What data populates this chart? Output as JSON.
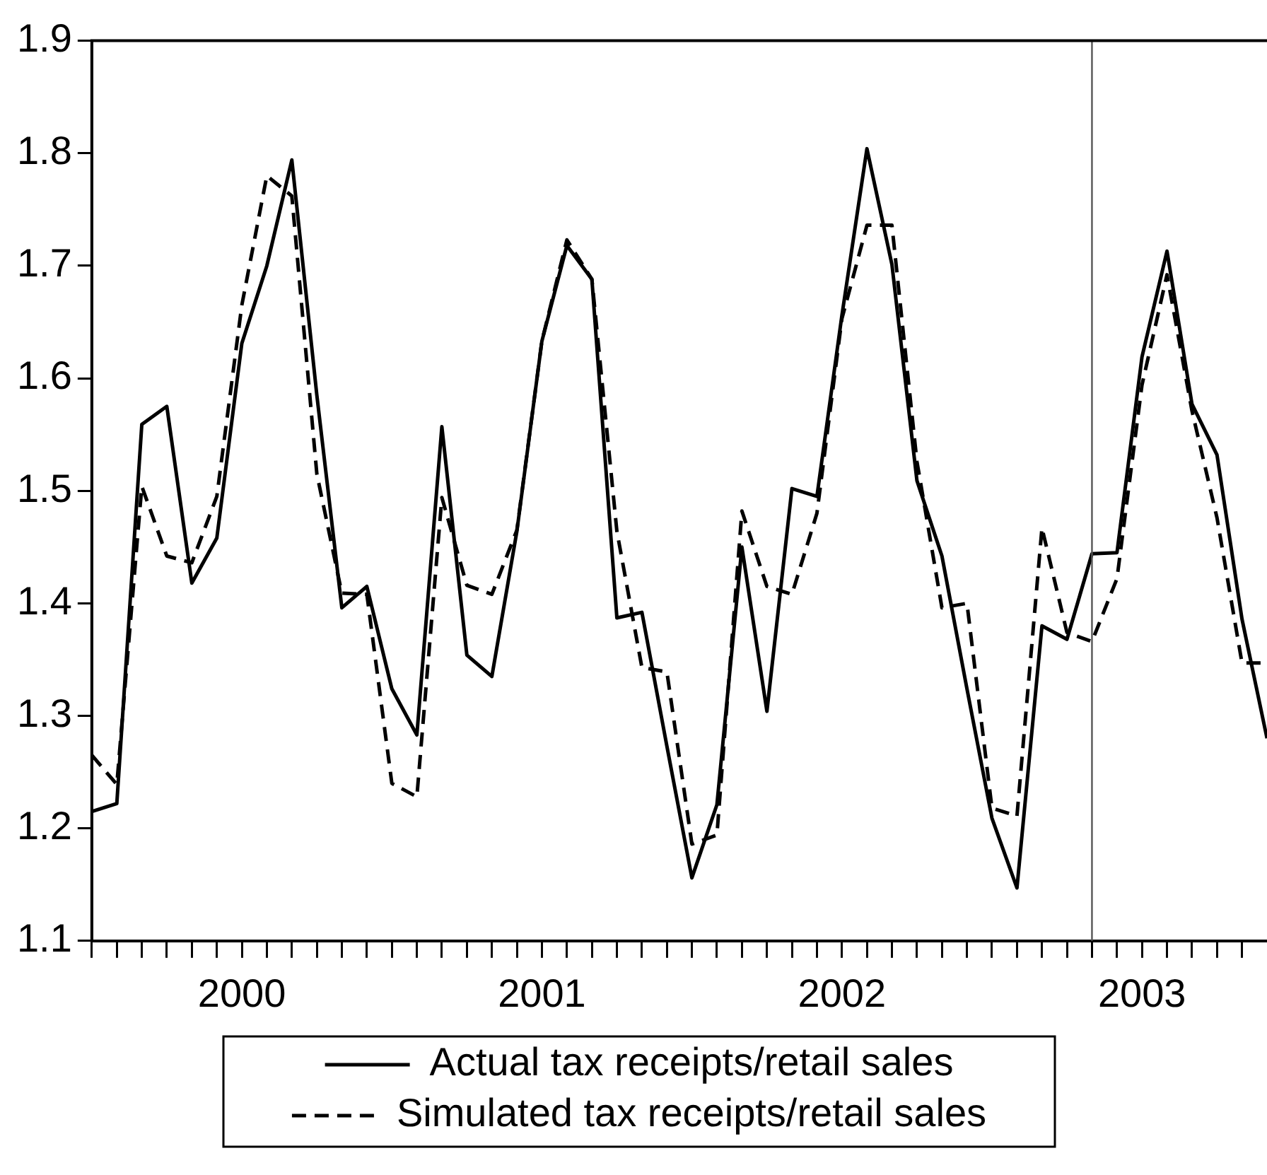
{
  "chart_data": {
    "type": "line",
    "x": [
      "2000-01",
      "2000-02",
      "2000-03",
      "2000-04",
      "2000-05",
      "2000-06",
      "2000-07",
      "2000-08",
      "2000-09",
      "2000-10",
      "2000-11",
      "2000-12",
      "2001-01",
      "2001-02",
      "2001-03",
      "2001-04",
      "2001-05",
      "2001-06",
      "2001-07",
      "2001-08",
      "2001-09",
      "2001-10",
      "2001-11",
      "2001-12",
      "2002-01",
      "2002-02",
      "2002-03",
      "2002-04",
      "2002-05",
      "2002-06",
      "2002-07",
      "2002-08",
      "2002-09",
      "2002-10",
      "2002-11",
      "2002-12",
      "2003-01",
      "2003-02",
      "2003-03",
      "2003-04",
      "2003-05",
      "2003-06",
      "2003-07",
      "2003-08",
      "2003-09",
      "2003-10",
      "2003-11",
      "2003-12"
    ],
    "series": [
      {
        "name": "Actual tax receipts/retail sales",
        "color": "#000000",
        "line_style": "solid",
        "values": [
          1.215,
          1.222,
          1.559,
          1.575,
          1.418,
          1.458,
          1.631,
          1.7,
          1.794,
          1.585,
          1.396,
          1.415,
          1.324,
          1.283,
          1.557,
          1.354,
          1.335,
          1.464,
          1.633,
          1.718,
          1.688,
          1.387,
          1.392,
          1.273,
          1.156,
          1.221,
          1.45,
          1.304,
          1.502,
          1.495,
          1.656,
          1.804,
          1.701,
          1.509,
          1.442,
          1.324,
          1.209,
          1.147,
          1.38,
          1.368,
          1.444,
          1.445,
          1.619,
          1.713,
          1.577,
          1.532,
          1.386,
          1.28
        ]
      },
      {
        "name": "Simulated tax receipts/retail sales",
        "color": "#000000",
        "line_style": "dashed",
        "values": [
          1.265,
          1.239,
          1.504,
          1.442,
          1.436,
          1.495,
          1.665,
          1.78,
          1.762,
          1.515,
          1.409,
          1.408,
          1.24,
          1.228,
          1.494,
          1.416,
          1.408,
          1.465,
          1.633,
          1.723,
          1.688,
          1.464,
          1.343,
          1.339,
          1.186,
          1.194,
          1.482,
          1.415,
          1.408,
          1.48,
          1.653,
          1.736,
          1.736,
          1.526,
          1.396,
          1.4,
          1.218,
          1.211,
          1.467,
          1.374,
          1.366,
          1.422,
          1.594,
          1.692,
          1.571,
          1.476,
          1.347,
          1.347
        ]
      }
    ],
    "xlim": [
      "2000-01",
      "2003-12"
    ],
    "xticks": [
      {
        "value": "2000-01",
        "label": null
      },
      {
        "value": "2000-02",
        "label": null
      },
      {
        "value": "2000-03",
        "label": null
      },
      {
        "value": "2000-04",
        "label": null
      },
      {
        "value": "2000-05",
        "label": null
      },
      {
        "value": "2000-06",
        "label": null
      },
      {
        "value": "2000-07",
        "label": "2000"
      },
      {
        "value": "2000-08",
        "label": null
      },
      {
        "value": "2000-09",
        "label": null
      },
      {
        "value": "2000-10",
        "label": null
      },
      {
        "value": "2000-11",
        "label": null
      },
      {
        "value": "2000-12",
        "label": null
      },
      {
        "value": "2001-01",
        "label": null
      },
      {
        "value": "2001-02",
        "label": null
      },
      {
        "value": "2001-03",
        "label": null
      },
      {
        "value": "2001-04",
        "label": null
      },
      {
        "value": "2001-05",
        "label": null
      },
      {
        "value": "2001-06",
        "label": null
      },
      {
        "value": "2001-07",
        "label": "2001"
      },
      {
        "value": "2001-08",
        "label": null
      },
      {
        "value": "2001-09",
        "label": null
      },
      {
        "value": "2001-10",
        "label": null
      },
      {
        "value": "2001-11",
        "label": null
      },
      {
        "value": "2001-12",
        "label": null
      },
      {
        "value": "2002-01",
        "label": null
      },
      {
        "value": "2002-02",
        "label": null
      },
      {
        "value": "2002-03",
        "label": null
      },
      {
        "value": "2002-04",
        "label": null
      },
      {
        "value": "2002-05",
        "label": null
      },
      {
        "value": "2002-06",
        "label": null
      },
      {
        "value": "2002-07",
        "label": "2002"
      },
      {
        "value": "2002-08",
        "label": null
      },
      {
        "value": "2002-09",
        "label": null
      },
      {
        "value": "2002-10",
        "label": null
      },
      {
        "value": "2002-11",
        "label": null
      },
      {
        "value": "2002-12",
        "label": null
      },
      {
        "value": "2003-01",
        "label": null
      },
      {
        "value": "2003-02",
        "label": null
      },
      {
        "value": "2003-03",
        "label": null
      },
      {
        "value": "2003-04",
        "label": null
      },
      {
        "value": "2003-05",
        "label": null
      },
      {
        "value": "2003-06",
        "label": null
      },
      {
        "value": "2003-07",
        "label": "2003"
      },
      {
        "value": "2003-08",
        "label": null
      },
      {
        "value": "2003-09",
        "label": null
      },
      {
        "value": "2003-10",
        "label": null
      },
      {
        "value": "2003-11",
        "label": null
      }
    ],
    "ylim": [
      1.1,
      1.9
    ],
    "yticks": [
      1.1,
      1.2,
      1.3,
      1.4,
      1.5,
      1.6,
      1.7,
      1.8,
      1.9
    ],
    "ref_lines": [
      {
        "axis": "x",
        "value": "2003-05",
        "color": "#555555"
      }
    ],
    "legend": "bottom",
    "marker": "none"
  }
}
